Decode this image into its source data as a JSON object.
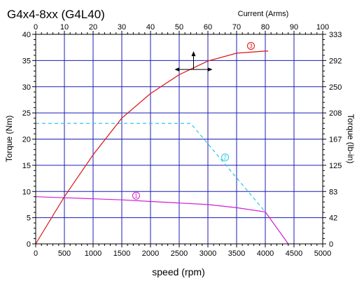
{
  "chart_data": {
    "type": "line",
    "title": "G4x4-8xx (G4L40)",
    "xlabel": "speed (rpm)",
    "ylabel": "Torque (Nm)",
    "y2label": "Torque (lb-in)",
    "x2label": "Current (Arms)",
    "xlim": [
      0,
      5000
    ],
    "ylim": [
      0,
      40
    ],
    "x2lim": [
      0,
      100
    ],
    "xticks": [
      0,
      500,
      1000,
      1500,
      2000,
      2500,
      3000,
      3500,
      4000,
      4500,
      5000
    ],
    "yticks": [
      0,
      5,
      10,
      15,
      20,
      25,
      30,
      35,
      40
    ],
    "x2ticks": [
      0,
      10,
      20,
      30,
      40,
      50,
      60,
      70,
      80,
      90,
      100
    ],
    "y2ticks": [
      {
        "value": 0,
        "label": "0"
      },
      {
        "value": 5,
        "label": "42"
      },
      {
        "value": 10,
        "label": "83"
      },
      {
        "value": 15,
        "label": "125"
      },
      {
        "value": 20,
        "label": "167"
      },
      {
        "value": 25,
        "label": "208"
      },
      {
        "value": 30,
        "label": "250"
      },
      {
        "value": 35,
        "label": "292"
      },
      {
        "value": 40,
        "label": "333"
      }
    ],
    "grid": true,
    "colors": {
      "grid": "#1c1cb4",
      "frame": "#000000"
    },
    "series": [
      {
        "axis": "primary",
        "label": "1",
        "label_at": [
          1750,
          9.2
        ],
        "color": "#d21ed2",
        "style": "solid",
        "x": [
          0,
          500,
          1000,
          1500,
          2000,
          2500,
          3000,
          3500,
          4000,
          4400
        ],
        "y": [
          9.0,
          8.8,
          8.6,
          8.4,
          8.1,
          7.8,
          7.5,
          6.9,
          6.1,
          0
        ]
      },
      {
        "axis": "primary",
        "label": "2",
        "label_at": [
          3300,
          16.5
        ],
        "color": "#28c8e6",
        "style": "dashed",
        "x": [
          0,
          2700,
          4000
        ],
        "y": [
          23,
          23,
          6.1
        ]
      },
      {
        "axis": "secondary",
        "label": "3",
        "label_at": [
          75,
          37.8
        ],
        "color": "#dc1414",
        "style": "solid",
        "x": [
          0,
          10,
          20,
          30,
          40,
          50,
          55,
          60,
          70,
          80,
          81
        ],
        "y": [
          0,
          9,
          17,
          24,
          28.7,
          32.3,
          33.6,
          34.9,
          36.4,
          36.8,
          36.8
        ]
      }
    ],
    "annotation": {
      "type": "crosshair",
      "x2": 55,
      "y": 33.3
    }
  }
}
